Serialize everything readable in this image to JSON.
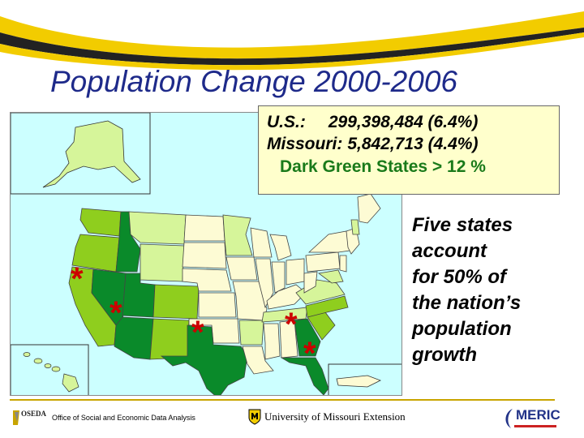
{
  "title": "Population Change 2000-2006",
  "stats": {
    "us_label": "U.S.:",
    "us_value": "299,398,484 (6.4%)",
    "mo_label": "Missouri:",
    "mo_value": "5,842,713 (4.4%)",
    "legend_note": "Dark Green States > 12 %"
  },
  "note_lines": [
    "Five states",
    "account",
    "for 50% of",
    "the nation’s",
    "population",
    "growth"
  ],
  "marker_symbol": "*",
  "colors": {
    "dark_green": "#0a8a2a",
    "medium_green": "#8fce1e",
    "light_green": "#d6f59a",
    "cream": "#fdfbd4",
    "ocean": "#ccffff",
    "marker": "#cc0000",
    "title": "#1e2a8a"
  },
  "footer": {
    "oseda_logo": "OSEDA",
    "oseda_name": "Office of Social and Economic Data Analysis",
    "university": "University of Missouri Extension",
    "meric": "MERIC"
  }
}
